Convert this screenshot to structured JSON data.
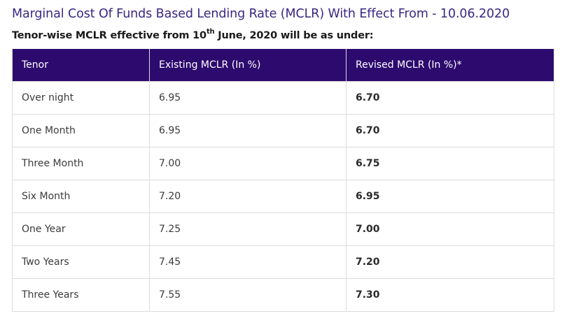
{
  "page": {
    "title": "Marginal Cost Of Funds Based Lending Rate (MCLR) With Effect From - 10.06.2020",
    "subtitle_before": "Tenor-wise MCLR effective from 10",
    "subtitle_sup": "th",
    "subtitle_after": " June, 2020 will be as under:"
  },
  "table": {
    "headers": {
      "tenor": "Tenor",
      "existing": "Existing MCLR (In %)",
      "revised": "Revised MCLR (In %)*"
    },
    "rows": [
      {
        "tenor": "Over night",
        "existing": "6.95",
        "revised": "6.70"
      },
      {
        "tenor": "One Month",
        "existing": "6.95",
        "revised": "6.70"
      },
      {
        "tenor": "Three Month",
        "existing": "7.00",
        "revised": "6.75"
      },
      {
        "tenor": "Six Month",
        "existing": "7.20",
        "revised": "6.95"
      },
      {
        "tenor": "One Year",
        "existing": "7.25",
        "revised": "7.00"
      },
      {
        "tenor": "Two Years",
        "existing": "7.45",
        "revised": "7.20"
      },
      {
        "tenor": "Three Years",
        "existing": "7.55",
        "revised": "7.30"
      }
    ]
  },
  "colors": {
    "title": "#3a2783",
    "header_bg": "#2d0b6e",
    "header_text": "#ffffff"
  }
}
